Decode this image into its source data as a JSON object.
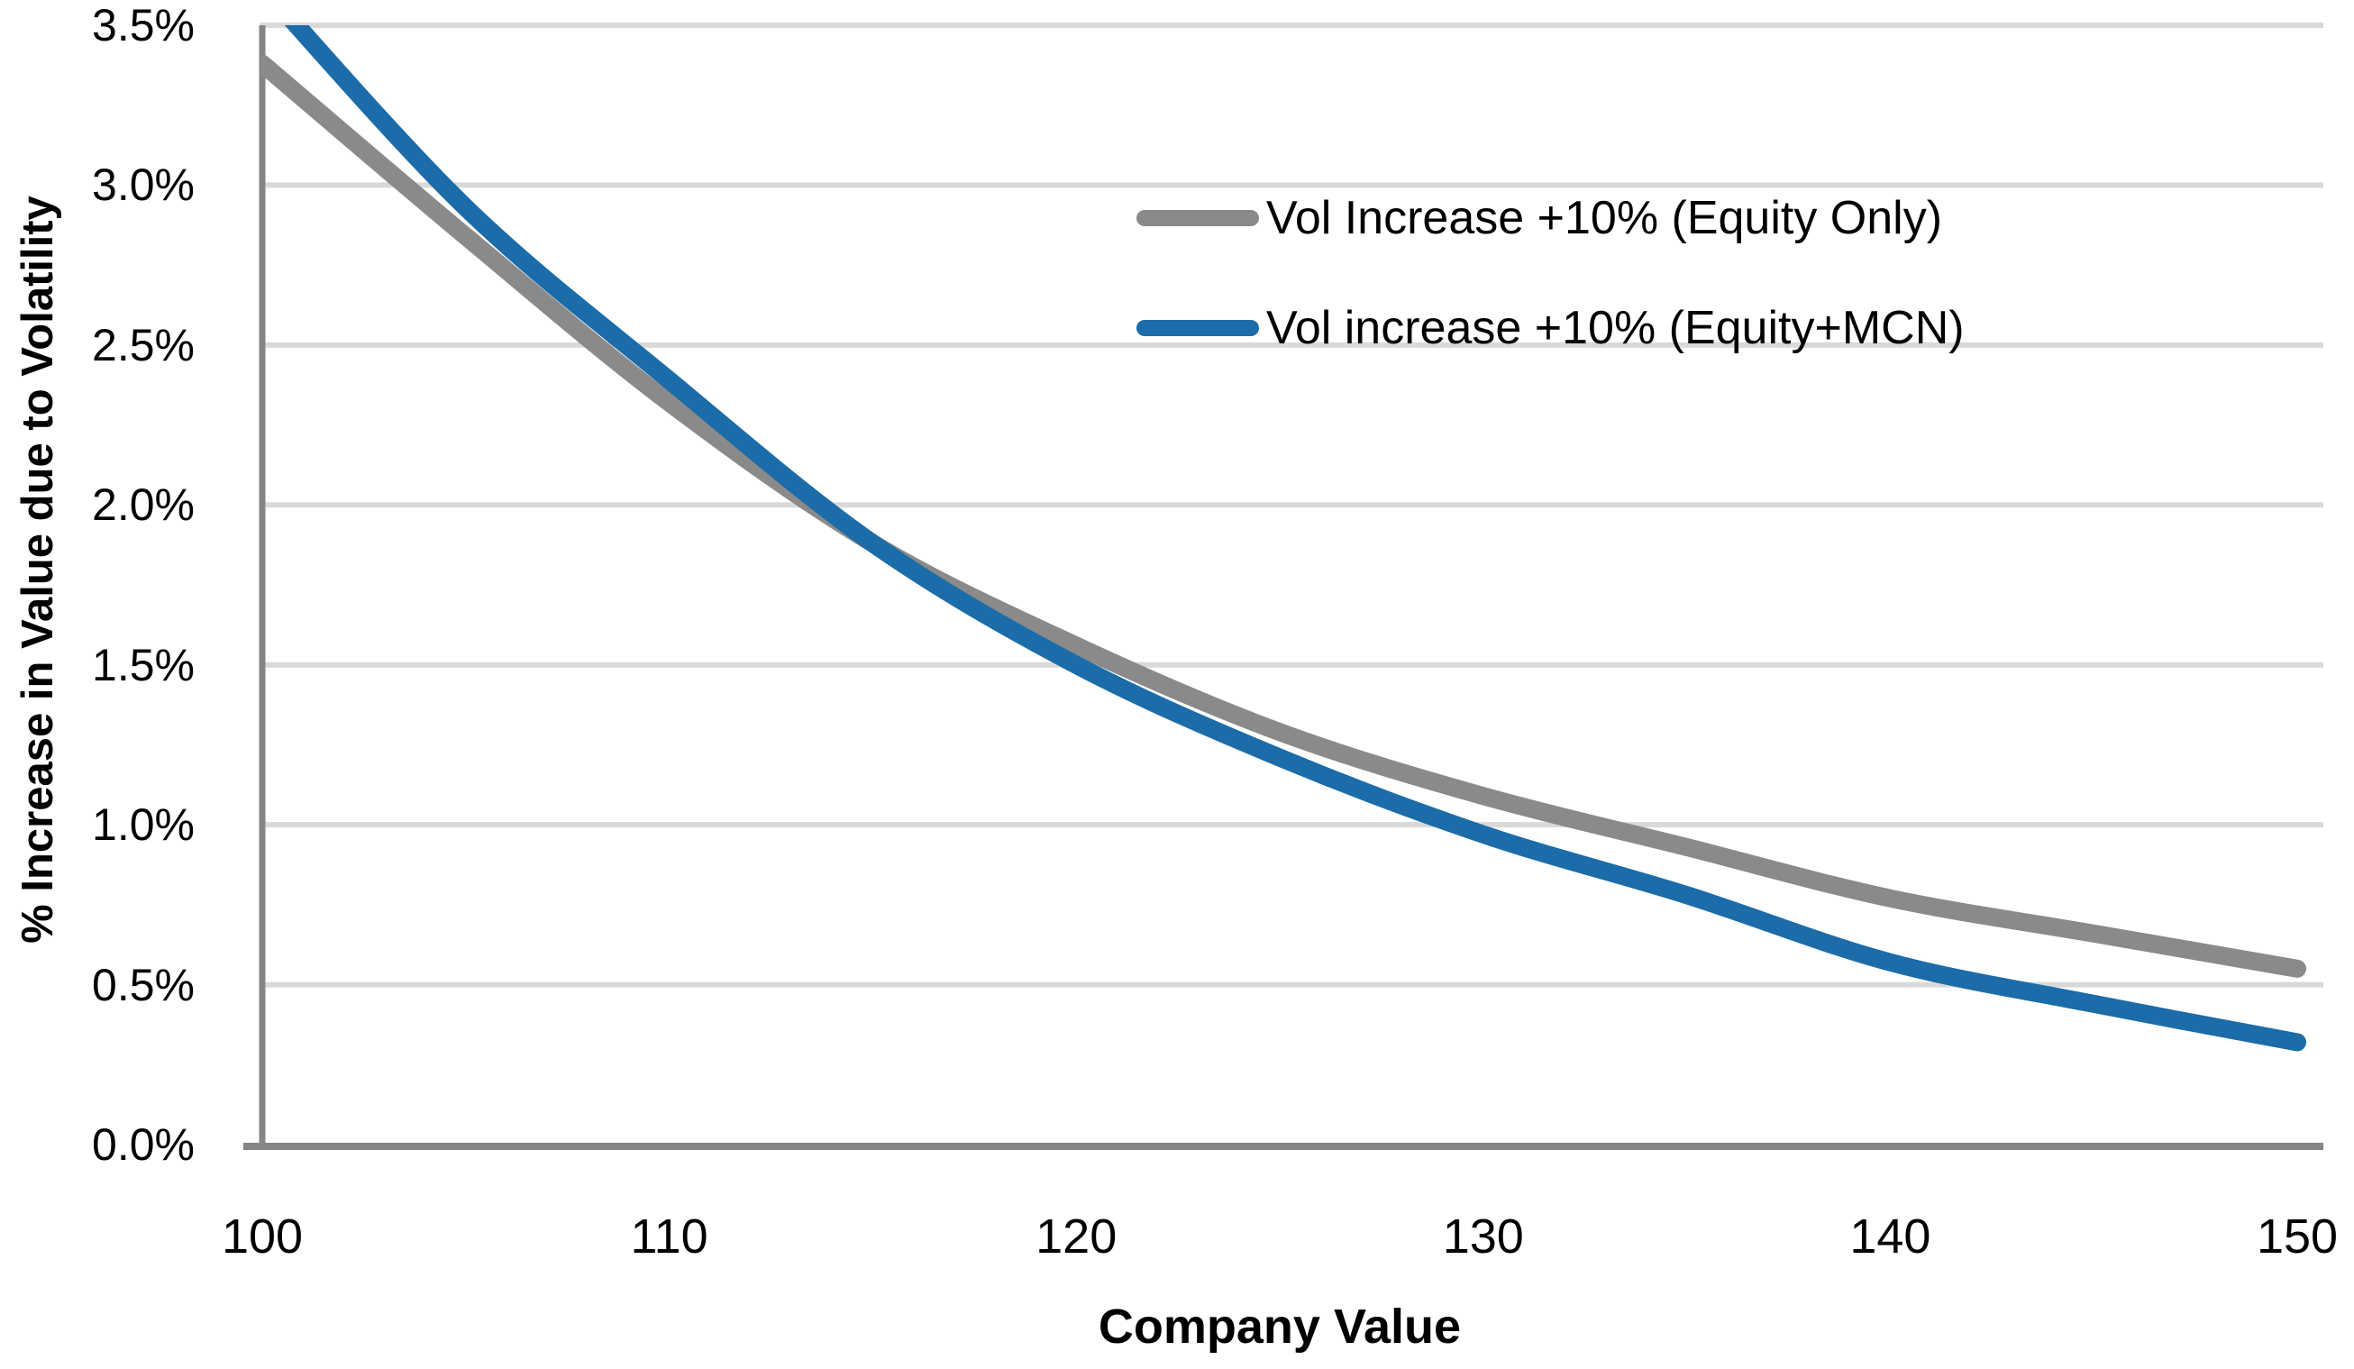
{
  "chart_data": {
    "type": "line",
    "xlabel": "Company Value",
    "ylabel": "% Increase in Value due to Volatility",
    "x": [
      100,
      105,
      110,
      115,
      120,
      125,
      130,
      135,
      140,
      145,
      150
    ],
    "xlim": [
      100,
      150
    ],
    "ylim": [
      0,
      3.5
    ],
    "x_ticks": [
      {
        "value": 100,
        "label": "100"
      },
      {
        "value": 110,
        "label": "110"
      },
      {
        "value": 120,
        "label": "120"
      },
      {
        "value": 130,
        "label": "130"
      },
      {
        "value": 140,
        "label": "140"
      },
      {
        "value": 150,
        "label": "150"
      }
    ],
    "y_ticks": [
      {
        "value": 0.0,
        "label": "0.0%"
      },
      {
        "value": 0.5,
        "label": "0.5%"
      },
      {
        "value": 1.0,
        "label": "1.0%"
      },
      {
        "value": 1.5,
        "label": "1.5%"
      },
      {
        "value": 2.0,
        "label": "2.0%"
      },
      {
        "value": 2.5,
        "label": "2.5%"
      },
      {
        "value": 3.0,
        "label": "3.0%"
      },
      {
        "value": 3.5,
        "label": "3.5%"
      }
    ],
    "grid": "horizontal",
    "legend_position": "inside-top-right",
    "series": [
      {
        "name": "Vol Increase +10% (Equity Only)",
        "color": "#8A8A8A",
        "values": [
          3.38,
          2.84,
          2.32,
          1.88,
          1.56,
          1.29,
          1.09,
          0.93,
          0.77,
          0.66,
          0.55
        ]
      },
      {
        "name": "Vol increase +10% (Equity+MCN)",
        "color": "#1B6CA8",
        "values": [
          3.62,
          2.93,
          2.39,
          1.88,
          1.5,
          1.21,
          0.97,
          0.78,
          0.57,
          0.44,
          0.32
        ]
      }
    ]
  },
  "style": {
    "gridline_color": "#D9D9D9",
    "axis_color": "#858585",
    "text_color": "#000000",
    "background": "#FFFFFF"
  }
}
